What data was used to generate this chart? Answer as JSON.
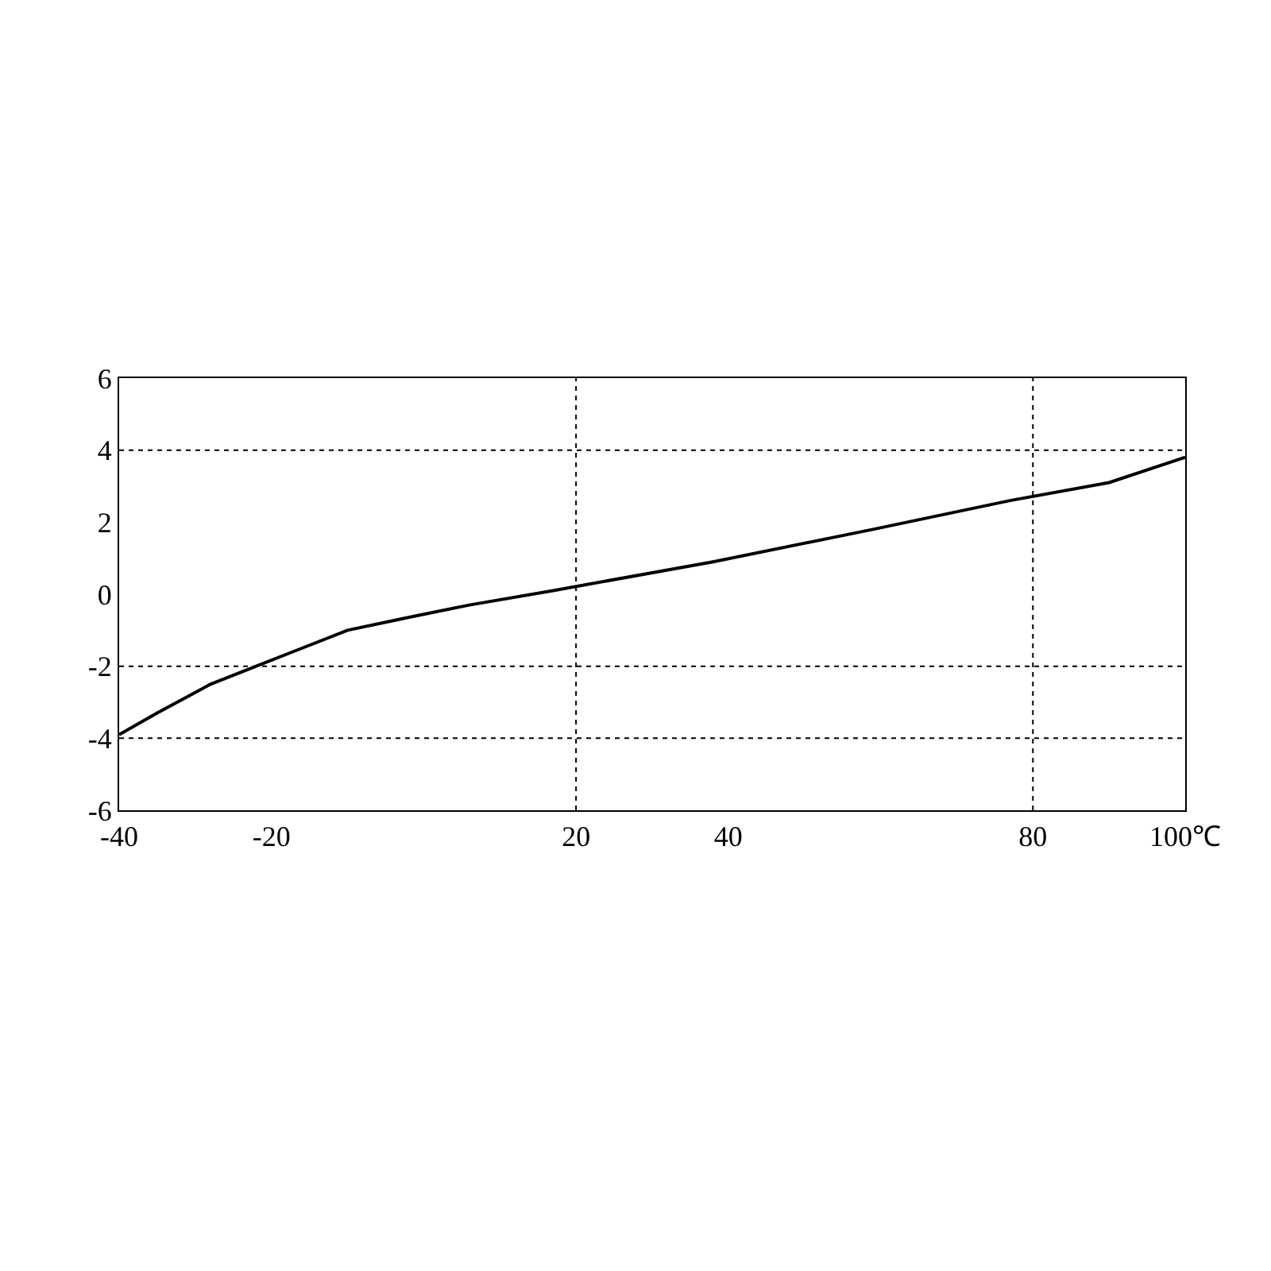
{
  "chart_data": {
    "type": "line",
    "x": [
      -40,
      -35,
      -28,
      -22,
      -16,
      -10,
      -1,
      6,
      17,
      38,
      59,
      77,
      90,
      100
    ],
    "series": [
      {
        "color": "#000000",
        "values": [
          -3.9,
          -3.3,
          -2.5,
          -2.0,
          -1.5,
          -1.0,
          -0.6,
          -0.3,
          0.1,
          0.9,
          1.8,
          2.6,
          3.1,
          3.8
        ]
      }
    ],
    "xlim": [
      -40,
      100
    ],
    "xticks": [
      -40,
      -20,
      20,
      40,
      80,
      {
        "value": 100,
        "label": "100℃"
      }
    ],
    "ylim": [
      -6,
      6
    ],
    "yticks": [
      -6,
      -4,
      -2,
      0,
      2,
      4,
      6
    ],
    "ref_lines": [
      {
        "axis": "x",
        "value": 20,
        "line_style": "dotted",
        "color": "#000000"
      },
      {
        "axis": "x",
        "value": 80,
        "line_style": "dotted",
        "color": "#000000"
      },
      {
        "axis": "y",
        "value": 4,
        "line_style": "dotted",
        "color": "#000000"
      },
      {
        "axis": "y",
        "value": -2,
        "line_style": "dotted",
        "color": "#000000"
      },
      {
        "axis": "y",
        "value": -4,
        "line_style": "dotted",
        "color": "#000000"
      }
    ],
    "legend": false,
    "marker": "none",
    "line_style": "solid"
  }
}
